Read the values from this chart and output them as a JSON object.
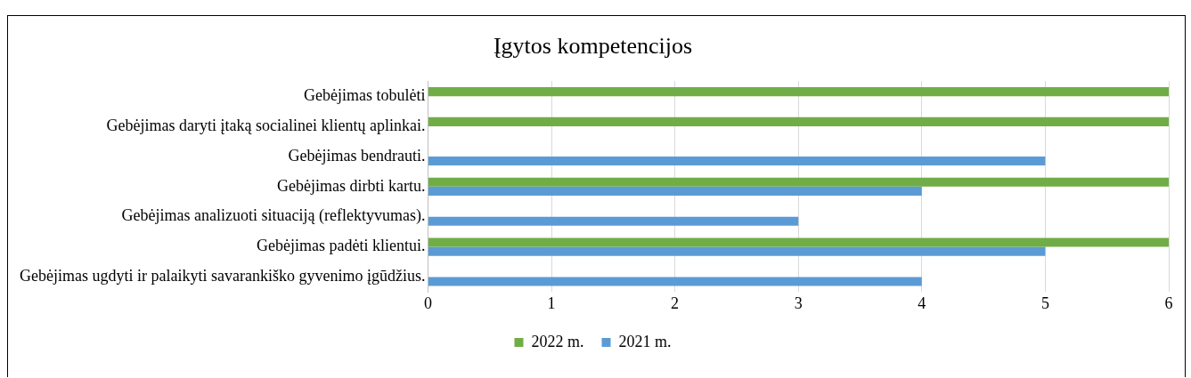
{
  "chart_data": {
    "type": "bar",
    "orientation": "horizontal",
    "title": "Įgytos kompetencijos",
    "categories": [
      "Gebėjimas tobulėti",
      "Gebėjimas daryti įtaką socialinei klientų aplinkai.",
      "Gebėjimas bendrauti.",
      "Gebėjimas dirbti kartu.",
      "Gebėjimas analizuoti situaciją (reflektyvumas).",
      "Gebėjimas padėti klientui.",
      "Gebėjimas ugdyti ir palaikyti savarankiško gyvenimo įgūdžius."
    ],
    "series": [
      {
        "name": "2022 m.",
        "color": "#70ad47",
        "values": [
          6,
          6,
          null,
          6,
          null,
          6,
          null
        ]
      },
      {
        "name": "2021 m.",
        "color": "#5b9bd5",
        "values": [
          null,
          null,
          5,
          4,
          3,
          5,
          4
        ]
      }
    ],
    "xlim": [
      0,
      6
    ],
    "xticks": [
      0,
      1,
      2,
      3,
      4,
      5,
      6
    ],
    "grid": "x",
    "legend": "bottom"
  }
}
